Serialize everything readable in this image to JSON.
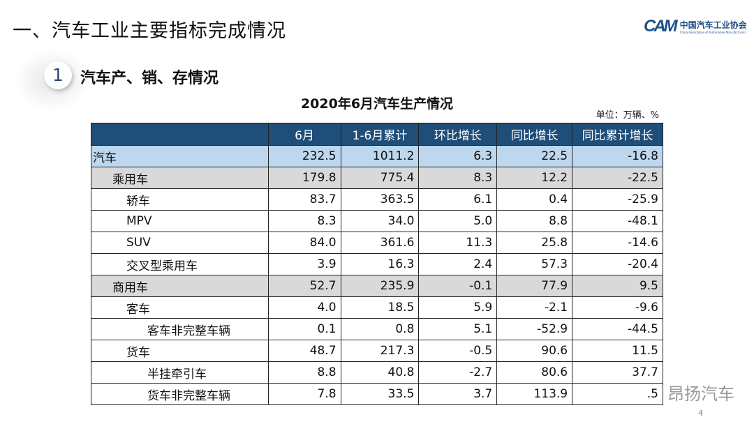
{
  "header": {
    "title": "一、汽车工业主要指标完成情况",
    "logo_cn": "中国汽车工业协会",
    "logo_en": "China Association of Automobile Manufacturers",
    "logo_mark": "CAM"
  },
  "section": {
    "number": "1",
    "title": "汽车产、销、存情况"
  },
  "table": {
    "title": "2020年6月汽车生产情况",
    "unit": "单位：万辆、%",
    "columns": [
      "",
      "6月",
      "1-6月累计",
      "环比增长",
      "同比增长",
      "同比累计增长"
    ],
    "rows": [
      {
        "label": "汽车",
        "level": 0,
        "values": [
          "232.5",
          "1011.2",
          "6.3",
          "22.5",
          "-16.8"
        ]
      },
      {
        "label": "乘用车",
        "level": 1,
        "values": [
          "179.8",
          "775.4",
          "8.3",
          "12.2",
          "-22.5"
        ]
      },
      {
        "label": "轿车",
        "level": 2,
        "values": [
          "83.7",
          "363.5",
          "6.1",
          "0.4",
          "-25.9"
        ]
      },
      {
        "label": "MPV",
        "level": 2,
        "values": [
          "8.3",
          "34.0",
          "5.0",
          "8.8",
          "-48.1"
        ]
      },
      {
        "label": "SUV",
        "level": 2,
        "values": [
          "84.0",
          "361.6",
          "11.3",
          "25.8",
          "-14.6"
        ]
      },
      {
        "label": "交叉型乘用车",
        "level": 2,
        "values": [
          "3.9",
          "16.3",
          "2.4",
          "57.3",
          "-20.4"
        ]
      },
      {
        "label": "商用车",
        "level": 1,
        "values": [
          "52.7",
          "235.9",
          "-0.1",
          "77.9",
          "9.5"
        ]
      },
      {
        "label": "客车",
        "level": 2,
        "values": [
          "4.0",
          "18.5",
          "5.9",
          "-2.1",
          "-9.6"
        ]
      },
      {
        "label": "客车非完整车辆",
        "level": 3,
        "values": [
          "0.1",
          "0.8",
          "5.1",
          "-52.9",
          "-44.5"
        ]
      },
      {
        "label": "货车",
        "level": 2,
        "values": [
          "48.7",
          "217.3",
          "-0.5",
          "90.6",
          "11.5"
        ]
      },
      {
        "label": "半挂牵引车",
        "level": 3,
        "values": [
          "8.8",
          "40.8",
          "-2.7",
          "80.6",
          "37.7"
        ]
      },
      {
        "label": "货车非完整车辆",
        "level": 3,
        "values": [
          "7.8",
          "33.5",
          "3.7",
          "113.9",
          ".5"
        ]
      }
    ]
  },
  "watermark": "昂扬汽车",
  "page_number": "4"
}
